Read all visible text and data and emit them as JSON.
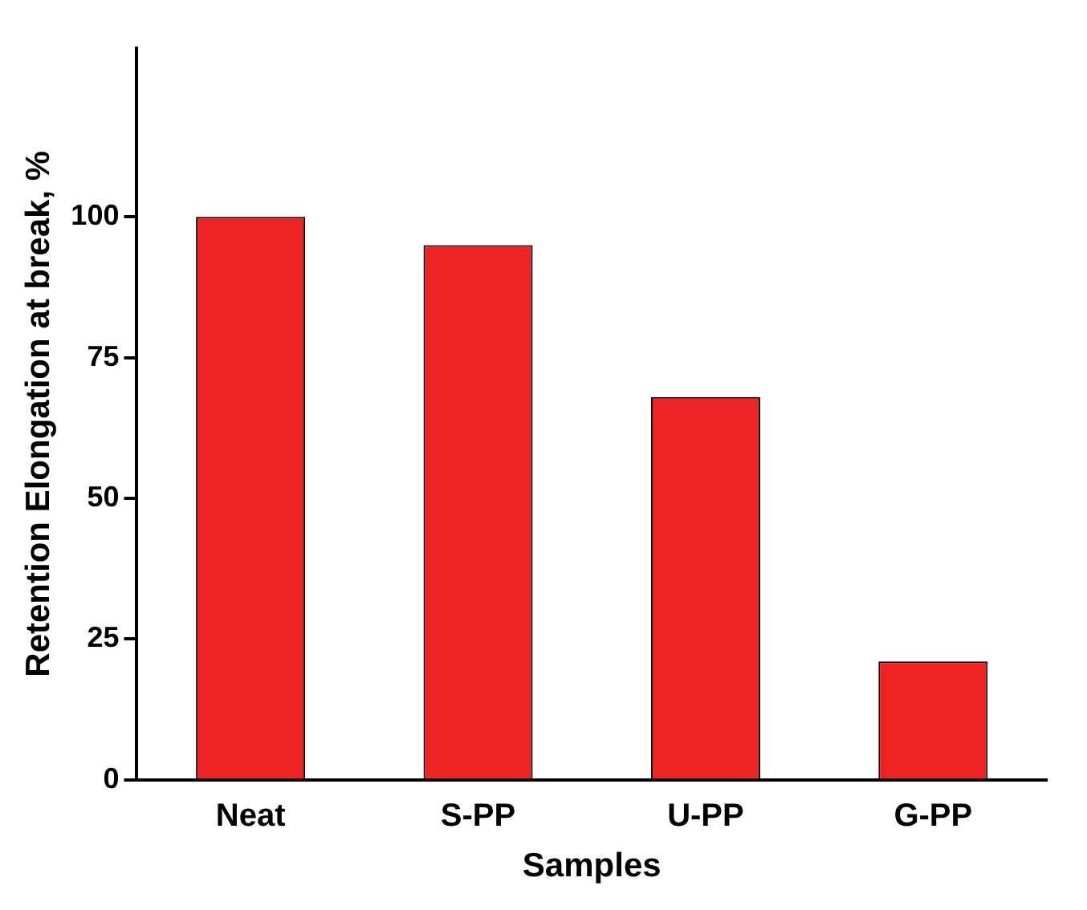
{
  "chart_data": {
    "type": "bar",
    "xlabel": "Samples",
    "ylabel": "Retention Elongation at break, %",
    "categories": [
      "Neat",
      "S-PP",
      "U-PP",
      "G-PP"
    ],
    "values": [
      100,
      95,
      68,
      21
    ],
    "color": "#ee2424",
    "ylim": [
      0,
      130
    ],
    "yticks": [
      0,
      25,
      50,
      75,
      100
    ],
    "grid": false
  }
}
